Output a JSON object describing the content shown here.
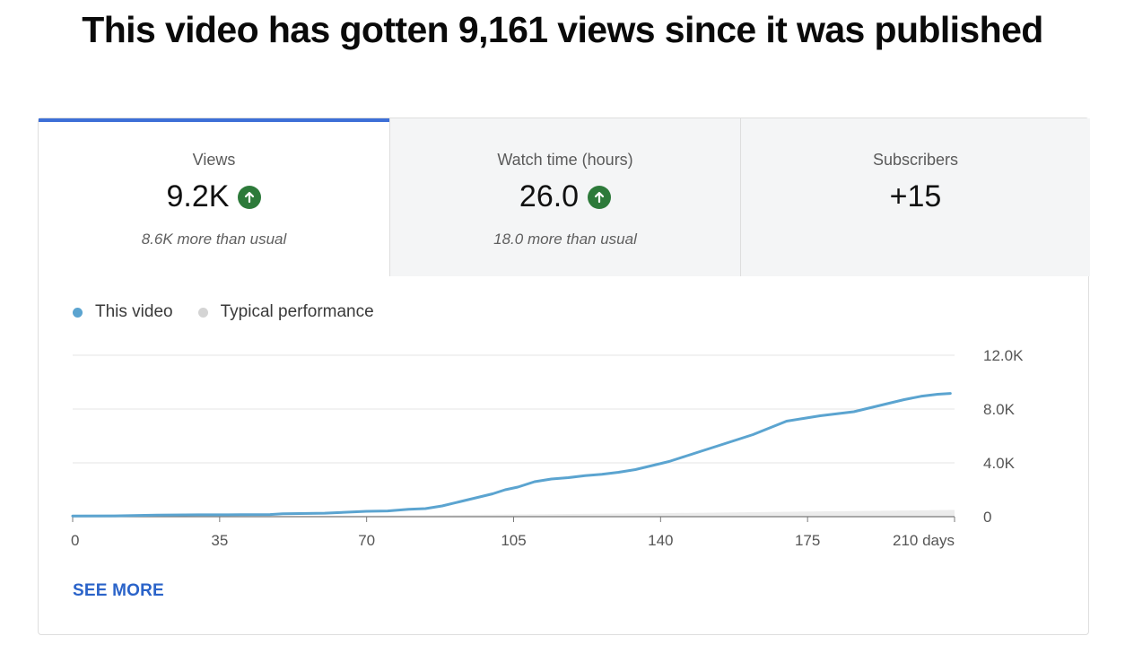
{
  "headline": "This video has gotten 9,161 views since it was published",
  "tabs": [
    {
      "label": "Views",
      "value": "9.2K",
      "sub": "8.6K more than usual",
      "trend_icon": "arrow-up-circle-icon"
    },
    {
      "label": "Watch time (hours)",
      "value": "26.0",
      "sub": "18.0 more than usual",
      "trend_icon": "arrow-up-circle-icon"
    },
    {
      "label": "Subscribers",
      "value": "+15",
      "sub": ""
    }
  ],
  "colors": {
    "this_video": "#5ba4d0",
    "typical": "#d4d4d4",
    "trend_up": "#2d7a3a",
    "selected_tab": "#3d6fd7",
    "link": "#2a63c9"
  },
  "see_more": "SEE MORE",
  "chart_data": {
    "type": "line",
    "x_ticks": [
      "0",
      "35",
      "70",
      "105",
      "140",
      "175",
      "210 days"
    ],
    "y_ticks": [
      "12.0K",
      "8.0K",
      "4.0K",
      "0"
    ],
    "xlim": [
      0,
      210
    ],
    "ylim": [
      0,
      12000
    ],
    "grid": true,
    "legend_position": "top-left",
    "series": [
      {
        "name": "This video",
        "x": [
          0,
          10,
          20,
          30,
          40,
          47,
          50,
          60,
          63,
          70,
          75,
          80,
          84,
          88,
          92,
          96,
          100,
          103,
          106,
          110,
          114,
          118,
          122,
          126,
          130,
          134,
          138,
          142,
          146,
          150,
          154,
          158,
          162,
          166,
          170,
          174,
          178,
          182,
          186,
          190,
          194,
          198,
          202,
          206,
          209
        ],
        "y": [
          50,
          60,
          120,
          140,
          150,
          160,
          220,
          260,
          300,
          400,
          430,
          550,
          600,
          800,
          1100,
          1400,
          1700,
          2000,
          2200,
          2600,
          2800,
          2900,
          3050,
          3150,
          3300,
          3500,
          3800,
          4100,
          4500,
          4900,
          5300,
          5700,
          6100,
          6600,
          7100,
          7300,
          7500,
          7650,
          7800,
          8100,
          8400,
          8700,
          8950,
          9100,
          9161
        ]
      },
      {
        "name": "Typical performance",
        "x": [
          0,
          35,
          70,
          105,
          140,
          175,
          210
        ],
        "y": [
          0,
          40,
          80,
          160,
          260,
          380,
          500
        ]
      }
    ]
  }
}
